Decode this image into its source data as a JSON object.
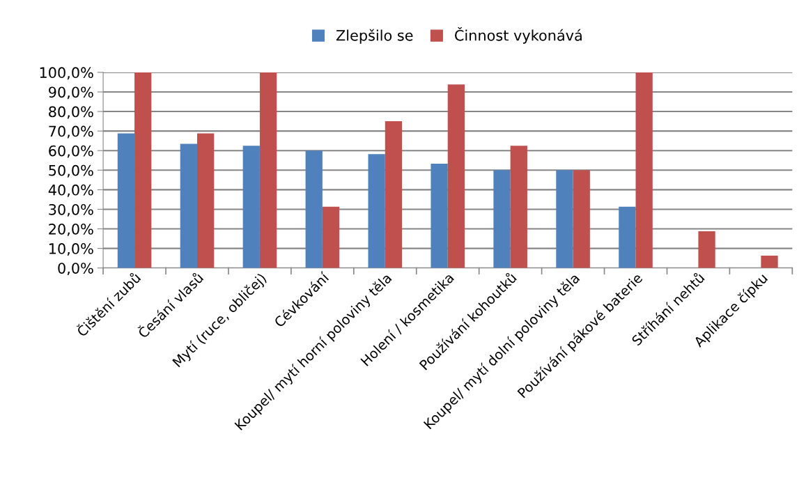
{
  "chart_data": {
    "type": "bar",
    "categories": [
      "Čištění zubů",
      "Česání vlasů",
      "Mytí (ruce, obličej)",
      "Cévkování",
      "Koupel/ mytí horní poloviny těla",
      "Holení / kosmetika",
      "Používání kohoutků",
      "Koupel/ mytí dolní poloviny těla",
      "Používání pákové baterie",
      "Stříhání nehtů",
      "Aplikace čípku"
    ],
    "series": [
      {
        "name": "Zlepšilo se",
        "color": "#4f81bd",
        "values": [
          68.8,
          63.5,
          62.5,
          60,
          58.2,
          53.3,
          50,
          50,
          31.3,
          0,
          0
        ]
      },
      {
        "name": "Činnost vykonává",
        "color": "#c0504d",
        "values": [
          100,
          68.8,
          100,
          31.3,
          75,
          93.8,
          62.5,
          50,
          100,
          18.8,
          6.3
        ]
      }
    ],
    "ylim": [
      0,
      100
    ],
    "yticks": [
      {
        "value": 0,
        "label": "0,0%"
      },
      {
        "value": 10,
        "label": "10,0%"
      },
      {
        "value": 20,
        "label": "20,0%"
      },
      {
        "value": 30,
        "label": "30,0%"
      },
      {
        "value": 40,
        "label": "40,0%"
      },
      {
        "value": 50,
        "label": "50,0%"
      },
      {
        "value": 60,
        "label": "60,0%"
      },
      {
        "value": 70,
        "label": "70,0%"
      },
      {
        "value": 80,
        "label": "80,0%"
      },
      {
        "value": 90,
        "label": "90,0%"
      },
      {
        "value": 100,
        "label": "100,0%"
      }
    ],
    "grid": "y",
    "legend": "top"
  }
}
